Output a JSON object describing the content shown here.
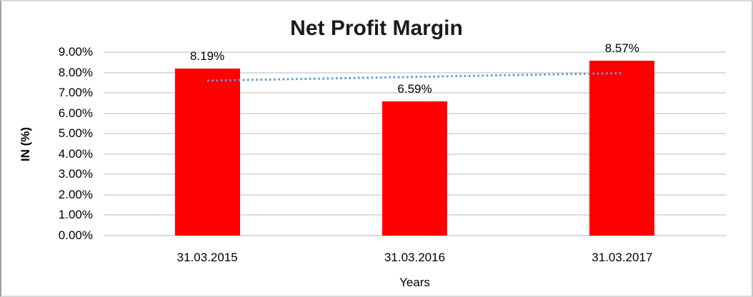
{
  "chart": {
    "title": "Net Profit Margin",
    "y_axis_title": "IN (%)",
    "x_axis_title": "Years"
  },
  "chart_data": {
    "type": "bar",
    "title": "Net Profit Margin",
    "categories": [
      "31.03.2015",
      "31.03.2016",
      "31.03.2017"
    ],
    "values": [
      8.19,
      6.59,
      8.57
    ],
    "data_labels": [
      "8.19%",
      "6.59%",
      "8.57%"
    ],
    "xlabel": "Years",
    "ylabel": "IN (%)",
    "ylim": [
      0,
      9
    ],
    "y_tick_step": 1,
    "y_tick_labels": [
      "0.00%",
      "1.00%",
      "2.00%",
      "3.00%",
      "4.00%",
      "5.00%",
      "6.00%",
      "7.00%",
      "8.00%",
      "9.00%"
    ],
    "grid": true,
    "legend": "none",
    "bar_color": "#ff0000",
    "trendline": {
      "type": "linear",
      "style": "dotted",
      "color": "#5b9bd5",
      "start_value": 7.6,
      "end_value": 7.97
    }
  }
}
